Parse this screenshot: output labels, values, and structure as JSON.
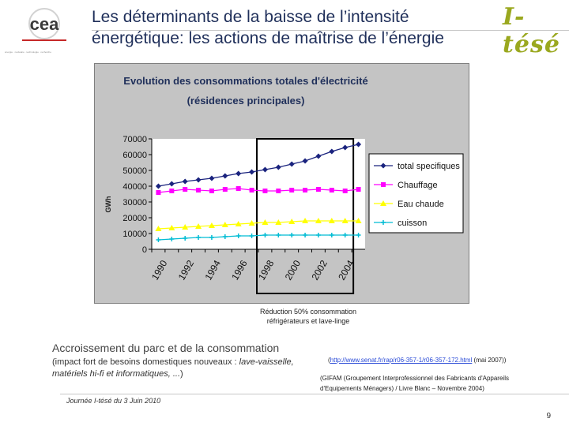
{
  "logo": {
    "name": "cea",
    "tagline": "énergie · nucléaire · technologie · recherche"
  },
  "slide": {
    "title_line1": "Les déterminants de la baisse de l’intensité",
    "title_line2": "énergétique: les actions de maîtrise de l’énergie",
    "brand": "I-tésé",
    "reduction_line1": "Réduction 50% consommation",
    "reduction_line2": "réfrigérateurs et lave-linge",
    "left_main": "Accroissement du parc et de la consommation",
    "left_sub_1": "(impact fort de besoins domestiques nouveaux : ",
    "left_sub_2": "lave-vaisselle, matériels hi-fi et informatiques, ...",
    "left_sub_3": ")",
    "ref_open": "(",
    "ref_url": "http://www.senat.fr/rap/r06-357-1/r06-357-172.html",
    "ref_close": " (mai 2007))",
    "gifam_line1": "(GIFAM (Groupement Interprofessionnel des Fabricants d'Appareils",
    "gifam_line2": "d'Equipements Ménagers) / Livre Blanc – Novembre 2004)",
    "footer": "Journée I-tésé du 3 Juin 2010",
    "page_number": "9"
  },
  "colors": {
    "title": "#1f2f5a",
    "brand": "#9aa81f",
    "chart_bg": "#c4c4c4",
    "plot_bg": "#ffffff",
    "series1": "#1a237e",
    "series2": "#ff00ff",
    "series3": "#ffff00",
    "series4": "#00bcd4"
  },
  "chart_data": {
    "type": "line",
    "title_line1": "Evolution des consommations totales d'électricité",
    "title_line2": "(résidences principales)",
    "ylabel": "GWh",
    "ylim": [
      0,
      70000
    ],
    "yticks": [
      0,
      10000,
      20000,
      30000,
      40000,
      50000,
      60000,
      70000
    ],
    "yticklabels": [
      "0",
      "10000",
      "20000",
      "30000",
      "40000",
      "50000",
      "60000",
      "70000"
    ],
    "x": [
      1990,
      1991,
      1992,
      1993,
      1994,
      1995,
      1996,
      1997,
      1998,
      1999,
      2000,
      2001,
      2002,
      2003,
      2004,
      2005
    ],
    "xticks": [
      1990,
      1992,
      1994,
      1996,
      1998,
      2000,
      2002,
      2004
    ],
    "xticklabels": [
      "1990",
      "1992",
      "1994",
      "1996",
      "1998",
      "2000",
      "2002",
      "2004"
    ],
    "shaded_range": [
      1998,
      2005
    ],
    "grid": false,
    "legend_position": "right",
    "series": [
      {
        "name": "total specifiques",
        "marker": "diamond",
        "values": [
          40000,
          41500,
          43000,
          44000,
          45000,
          46500,
          48000,
          49000,
          50500,
          52000,
          54000,
          56000,
          59000,
          62000,
          64500,
          66500
        ]
      },
      {
        "name": "Chauffage",
        "marker": "square",
        "values": [
          36000,
          37000,
          38000,
          37500,
          37000,
          38000,
          38500,
          37500,
          37000,
          37000,
          37500,
          37500,
          38000,
          37500,
          37000,
          38000
        ]
      },
      {
        "name": "Eau chaude",
        "marker": "triangle",
        "values": [
          13000,
          13500,
          14000,
          14500,
          15000,
          15500,
          16000,
          16500,
          17000,
          17000,
          17500,
          18000,
          18000,
          18000,
          18000,
          18000
        ]
      },
      {
        "name": "cuisson",
        "marker": "cross",
        "values": [
          6000,
          6500,
          7000,
          7500,
          7500,
          8000,
          8500,
          8500,
          9000,
          9000,
          9000,
          9000,
          9000,
          9000,
          9000,
          9000
        ]
      }
    ]
  }
}
